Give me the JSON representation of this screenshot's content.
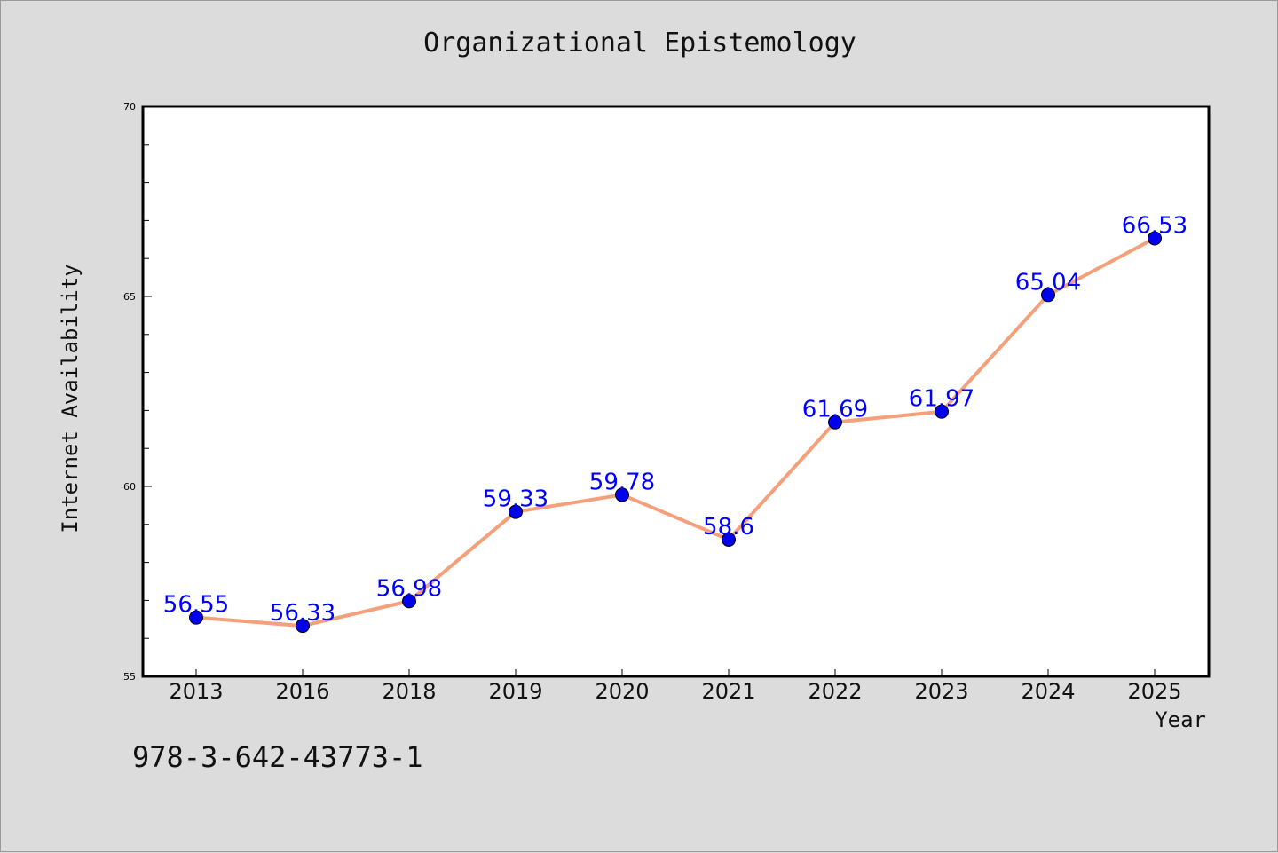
{
  "figure": {
    "title": "Organizational Epistemology",
    "footnote": "978-3-642-43773-1",
    "background_color": "#dcdcdc"
  },
  "chart_data": {
    "type": "line",
    "title": "Organizational Epistemology",
    "xlabel": "Year",
    "ylabel": "Internet Availability",
    "categories": [
      "2013",
      "2016",
      "2018",
      "2019",
      "2020",
      "2021",
      "2022",
      "2023",
      "2024",
      "2025"
    ],
    "series": [
      {
        "values": [
          56.55,
          56.33,
          56.98,
          59.33,
          59.78,
          58.6,
          61.69,
          61.97,
          65.04,
          66.53
        ],
        "labels": [
          "56.55",
          "56.33",
          "56.98",
          "59.33",
          "59.78",
          "58.6",
          "61.69",
          "61.97",
          "65.04",
          "66.53"
        ],
        "line_color": "#f4a07a",
        "marker_color": "#0000ee",
        "label_color": "#0000ff"
      }
    ],
    "ylim": [
      55,
      70
    ],
    "y_ticks": [
      55,
      60,
      65,
      70
    ],
    "y_minor_step": 1,
    "grid": false,
    "legend": false
  }
}
